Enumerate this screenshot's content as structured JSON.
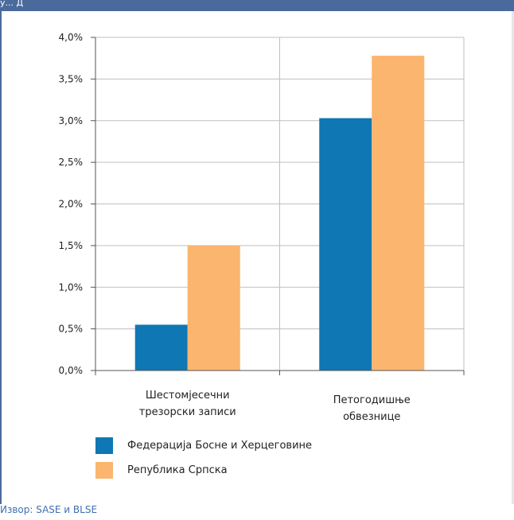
{
  "header": {
    "title_fragment": "у... Д"
  },
  "colors": {
    "header_bar": "#4a6a9c",
    "series_federation": "#0f77b3",
    "series_srpska": "#fbb56e",
    "gridline": "#bfbfbf",
    "axis": "#555555",
    "source_text": "#3f6fb0"
  },
  "chart_data": {
    "type": "bar",
    "categories": [
      [
        "Шестомјесечни",
        "трезорски записи"
      ],
      [
        "Петогодишње",
        "обвезнице"
      ]
    ],
    "series": [
      {
        "name": "Федерација Босне и Херцеговине",
        "values": [
          0.55,
          3.03
        ]
      },
      {
        "name": "Република Српска",
        "values": [
          1.5,
          3.78
        ]
      }
    ],
    "y_ticks": [
      "0,0%",
      "0,5%",
      "1,0%",
      "1,5%",
      "2,0%",
      "2,5%",
      "3,0%",
      "3,5%",
      "4,0%"
    ],
    "ylim": [
      0,
      4
    ],
    "grid": true,
    "legend_position": "bottom-left"
  },
  "source": "Извор: SASE и BLSE"
}
